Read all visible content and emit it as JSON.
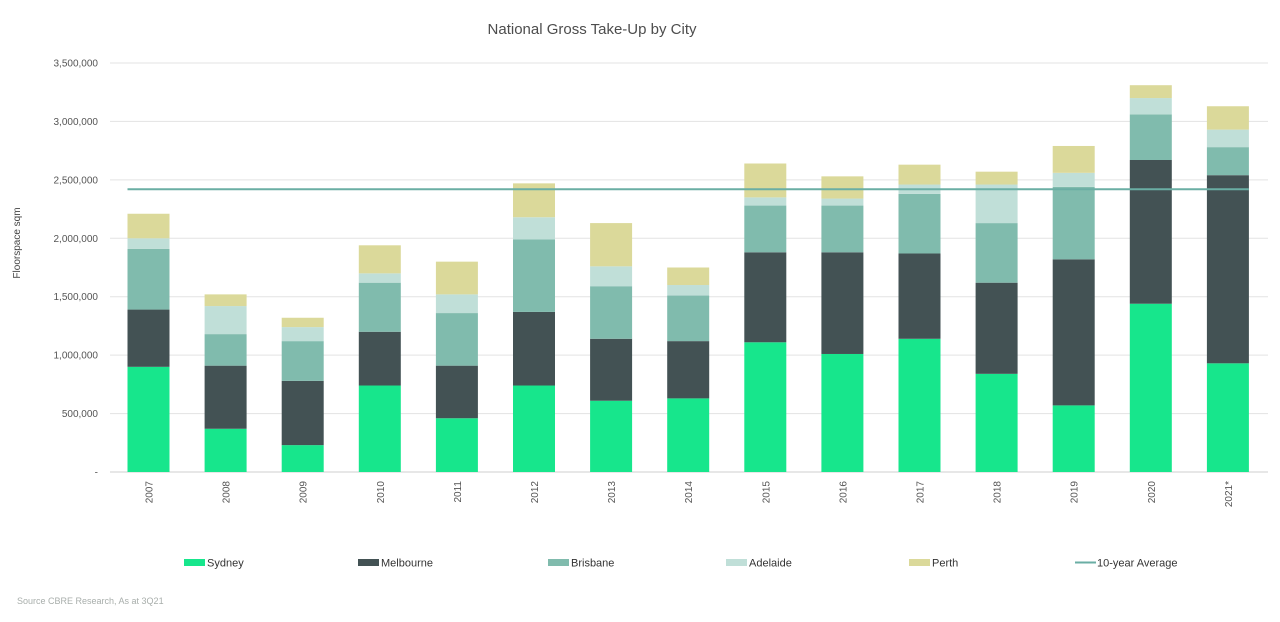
{
  "chart_data": {
    "type": "bar",
    "stacked": true,
    "title": "National Gross Take-Up by City",
    "ylabel": "Floorspace sqm",
    "xlabel": "",
    "ylim": [
      0,
      3500000
    ],
    "yticks": [
      0,
      500000,
      1000000,
      1500000,
      2000000,
      2500000,
      3000000,
      3500000
    ],
    "ytick_labels": [
      "-",
      "500,000",
      "1,000,000",
      "1,500,000",
      "2,000,000",
      "2,500,000",
      "3,000,000",
      "3,500,000"
    ],
    "grid": true,
    "legend_position": "bottom",
    "categories": [
      "2007",
      "2008",
      "2009",
      "2010",
      "2011",
      "2012",
      "2013",
      "2014",
      "2015",
      "2016",
      "2017",
      "2018",
      "2019",
      "2020",
      "2021*"
    ],
    "series": [
      {
        "name": "Sydney",
        "color": "#17e68c",
        "values": [
          900000,
          370000,
          230000,
          740000,
          460000,
          740000,
          610000,
          630000,
          1110000,
          1010000,
          1140000,
          840000,
          570000,
          1440000,
          930000
        ]
      },
      {
        "name": "Melbourne",
        "color": "#435254",
        "values": [
          490000,
          540000,
          550000,
          460000,
          450000,
          630000,
          530000,
          490000,
          770000,
          870000,
          730000,
          780000,
          1250000,
          1230000,
          1610000
        ]
      },
      {
        "name": "Brisbane",
        "color": "#80bbad",
        "values": [
          520000,
          270000,
          340000,
          420000,
          450000,
          620000,
          450000,
          390000,
          400000,
          400000,
          510000,
          510000,
          620000,
          390000,
          240000
        ]
      },
      {
        "name": "Adelaide",
        "color": "#c0dfd8",
        "values": [
          90000,
          240000,
          120000,
          80000,
          160000,
          190000,
          170000,
          90000,
          70000,
          60000,
          80000,
          330000,
          120000,
          140000,
          150000
        ]
      },
      {
        "name": "Perth",
        "color": "#dbd99a",
        "values": [
          210000,
          100000,
          80000,
          240000,
          280000,
          290000,
          370000,
          150000,
          290000,
          190000,
          170000,
          110000,
          230000,
          110000,
          200000
        ]
      }
    ],
    "reference_line": {
      "name": "10-year Average",
      "color": "#6aaea4",
      "value": 2420000
    },
    "source": "Source CBRE Research, As at 3Q21"
  }
}
